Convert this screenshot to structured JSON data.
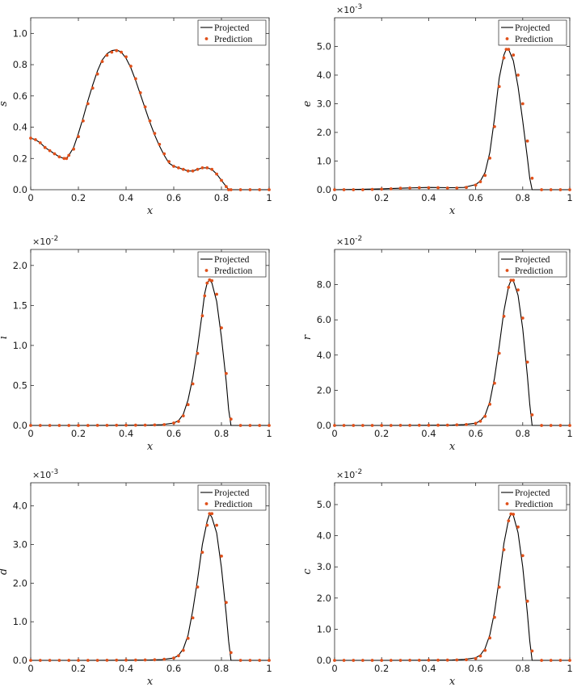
{
  "colors": {
    "projected": "#000000",
    "prediction": "#e0501a"
  },
  "legend": {
    "projected_label": "Projected",
    "prediction_label": "Prediction",
    "location": "top-right"
  },
  "chart_data": [
    {
      "type": "line",
      "title": "",
      "xlabel": "x",
      "ylabel": "s",
      "xlim": [
        0,
        1
      ],
      "ylim": [
        0,
        1.1
      ],
      "exponent": "",
      "xticks": [
        "0",
        "0.2",
        "0.4",
        "0.6",
        "0.8",
        "1"
      ],
      "yticks": [
        0,
        0.2,
        0.4,
        0.6,
        0.8,
        1.0
      ],
      "yticklabels": [
        "0.0",
        "0.2",
        "0.4",
        "0.6",
        "0.8",
        "1.0"
      ],
      "series": [
        {
          "name": "Projected",
          "style": "line",
          "x": [
            0,
            0.02,
            0.04,
            0.06,
            0.08,
            0.1,
            0.12,
            0.14,
            0.15,
            0.16,
            0.18,
            0.2,
            0.22,
            0.24,
            0.26,
            0.28,
            0.3,
            0.32,
            0.34,
            0.36,
            0.38,
            0.4,
            0.42,
            0.44,
            0.46,
            0.48,
            0.5,
            0.52,
            0.54,
            0.56,
            0.58,
            0.6,
            0.62,
            0.64,
            0.66,
            0.68,
            0.7,
            0.72,
            0.74,
            0.76,
            0.78,
            0.8,
            0.82,
            0.83,
            0.84,
            0.9,
            1.0
          ],
          "y": [
            0.33,
            0.32,
            0.3,
            0.27,
            0.25,
            0.23,
            0.21,
            0.2,
            0.2,
            0.22,
            0.27,
            0.36,
            0.46,
            0.57,
            0.67,
            0.76,
            0.83,
            0.87,
            0.89,
            0.895,
            0.88,
            0.84,
            0.78,
            0.7,
            0.61,
            0.52,
            0.43,
            0.35,
            0.28,
            0.22,
            0.17,
            0.15,
            0.14,
            0.13,
            0.12,
            0.12,
            0.13,
            0.14,
            0.14,
            0.13,
            0.1,
            0.06,
            0.02,
            0.0,
            0.0,
            0.0,
            0.0
          ]
        },
        {
          "name": "Prediction",
          "style": "markers",
          "x": [
            0,
            0.02,
            0.04,
            0.06,
            0.08,
            0.1,
            0.12,
            0.14,
            0.15,
            0.16,
            0.18,
            0.2,
            0.22,
            0.24,
            0.26,
            0.28,
            0.3,
            0.32,
            0.34,
            0.36,
            0.38,
            0.4,
            0.42,
            0.44,
            0.46,
            0.48,
            0.5,
            0.52,
            0.54,
            0.56,
            0.58,
            0.6,
            0.62,
            0.64,
            0.66,
            0.68,
            0.7,
            0.72,
            0.74,
            0.76,
            0.78,
            0.8,
            0.82,
            0.83,
            0.84,
            0.88,
            0.92,
            0.96,
            1.0
          ],
          "y": [
            0.33,
            0.32,
            0.3,
            0.27,
            0.25,
            0.23,
            0.21,
            0.2,
            0.2,
            0.22,
            0.26,
            0.34,
            0.44,
            0.55,
            0.65,
            0.74,
            0.82,
            0.86,
            0.88,
            0.89,
            0.88,
            0.85,
            0.79,
            0.71,
            0.62,
            0.53,
            0.44,
            0.36,
            0.29,
            0.23,
            0.18,
            0.15,
            0.14,
            0.13,
            0.12,
            0.12,
            0.13,
            0.14,
            0.14,
            0.13,
            0.1,
            0.06,
            0.02,
            0.0,
            0.0,
            0.0,
            0.0,
            0.0,
            0.0
          ]
        }
      ]
    },
    {
      "type": "line",
      "title": "",
      "xlabel": "x",
      "ylabel": "e",
      "xlim": [
        0,
        1
      ],
      "ylim": [
        0,
        0.006
      ],
      "exponent": "-3",
      "xticks": [
        "0",
        "0.2",
        "0.4",
        "0.6",
        "0.8",
        "1"
      ],
      "yticks": [
        0,
        0.001,
        0.002,
        0.003,
        0.004,
        0.005
      ],
      "yticklabels": [
        "0.0",
        "1.0",
        "2.0",
        "3.0",
        "4.0",
        "5.0"
      ],
      "series": [
        {
          "name": "Projected",
          "style": "line",
          "x": [
            0,
            0.1,
            0.2,
            0.3,
            0.4,
            0.5,
            0.55,
            0.6,
            0.62,
            0.64,
            0.66,
            0.68,
            0.7,
            0.72,
            0.73,
            0.74,
            0.76,
            0.78,
            0.8,
            0.82,
            0.83,
            0.84,
            0.9,
            1.0
          ],
          "y": [
            0,
            1e-05,
            3e-05,
            6e-05,
            8e-05,
            7e-05,
            8e-05,
            0.00018,
            0.0003,
            0.0006,
            0.0013,
            0.0025,
            0.0039,
            0.0047,
            0.0049,
            0.0049,
            0.0045,
            0.0036,
            0.0024,
            0.0011,
            0.0004,
            0.0,
            0.0,
            0.0
          ]
        },
        {
          "name": "Prediction",
          "style": "markers",
          "x": [
            0,
            0.04,
            0.08,
            0.12,
            0.16,
            0.2,
            0.24,
            0.28,
            0.32,
            0.36,
            0.4,
            0.44,
            0.48,
            0.52,
            0.56,
            0.6,
            0.62,
            0.64,
            0.66,
            0.68,
            0.7,
            0.72,
            0.73,
            0.74,
            0.76,
            0.78,
            0.8,
            0.82,
            0.84,
            0.88,
            0.92,
            0.96,
            1.0
          ],
          "y": [
            0,
            0.0,
            0.0,
            0.0,
            1e-05,
            2e-05,
            3e-05,
            5e-05,
            6e-05,
            7e-05,
            7e-05,
            7e-05,
            6e-05,
            6e-05,
            8e-05,
            0.00016,
            0.00028,
            0.0005,
            0.0011,
            0.0022,
            0.0036,
            0.0046,
            0.0049,
            0.0049,
            0.0047,
            0.004,
            0.003,
            0.0017,
            0.0004,
            0.0,
            0.0,
            0.0,
            0.0
          ]
        }
      ]
    },
    {
      "type": "line",
      "title": "",
      "xlabel": "x",
      "ylabel": "i",
      "xlim": [
        0,
        1
      ],
      "ylim": [
        0,
        0.022
      ],
      "exponent": "-2",
      "xticks": [
        "0",
        "0.2",
        "0.4",
        "0.6",
        "0.8",
        "1"
      ],
      "yticks": [
        0,
        0.005,
        0.01,
        0.015,
        0.02
      ],
      "yticklabels": [
        "0.0",
        "0.5",
        "1.0",
        "1.5",
        "2.0"
      ],
      "series": [
        {
          "name": "Projected",
          "style": "line",
          "x": [
            0,
            0.2,
            0.4,
            0.5,
            0.55,
            0.6,
            0.62,
            0.64,
            0.66,
            0.68,
            0.7,
            0.72,
            0.73,
            0.74,
            0.75,
            0.76,
            0.78,
            0.8,
            0.82,
            0.83,
            0.84,
            0.9,
            1.0
          ],
          "y": [
            0,
            0.0,
            2e-05,
            5e-05,
            0.0001,
            0.0003,
            0.0006,
            0.0014,
            0.0032,
            0.006,
            0.0098,
            0.0142,
            0.0165,
            0.0178,
            0.0182,
            0.0178,
            0.0155,
            0.011,
            0.0055,
            0.002,
            0.0,
            0.0,
            0.0
          ]
        },
        {
          "name": "Prediction",
          "style": "markers",
          "x": [
            0,
            0.04,
            0.08,
            0.12,
            0.16,
            0.2,
            0.24,
            0.28,
            0.32,
            0.36,
            0.4,
            0.44,
            0.48,
            0.52,
            0.56,
            0.6,
            0.62,
            0.64,
            0.66,
            0.68,
            0.7,
            0.72,
            0.73,
            0.74,
            0.75,
            0.76,
            0.78,
            0.8,
            0.82,
            0.84,
            0.88,
            0.92,
            0.96,
            1.0
          ],
          "y": [
            0,
            0.0,
            0.0,
            0.0,
            0.0,
            0.0,
            0.0,
            1e-05,
            1e-05,
            2e-05,
            2e-05,
            3e-05,
            4e-05,
            6e-05,
            0.0001,
            0.0003,
            0.0005,
            0.0012,
            0.0026,
            0.0052,
            0.009,
            0.0137,
            0.0162,
            0.0178,
            0.0182,
            0.0181,
            0.0164,
            0.0122,
            0.0065,
            0.0008,
            0.0,
            0.0,
            0.0,
            0.0
          ]
        }
      ]
    },
    {
      "type": "line",
      "title": "",
      "xlabel": "x",
      "ylabel": "r",
      "xlim": [
        0,
        1
      ],
      "ylim": [
        0,
        0.1
      ],
      "exponent": "-2",
      "xticks": [
        "0",
        "0.2",
        "0.4",
        "0.6",
        "0.8",
        "1"
      ],
      "yticks": [
        0,
        0.02,
        0.04,
        0.06,
        0.08
      ],
      "yticklabels": [
        "0.0",
        "2.0",
        "4.0",
        "6.0",
        "8.0"
      ],
      "series": [
        {
          "name": "Projected",
          "style": "line",
          "x": [
            0,
            0.2,
            0.4,
            0.5,
            0.55,
            0.6,
            0.62,
            0.64,
            0.66,
            0.68,
            0.7,
            0.72,
            0.74,
            0.75,
            0.76,
            0.78,
            0.8,
            0.82,
            0.83,
            0.84,
            0.9,
            1.0
          ],
          "y": [
            0,
            0.0,
            0.0001,
            0.0002,
            0.0005,
            0.0013,
            0.0026,
            0.0058,
            0.0135,
            0.027,
            0.045,
            0.065,
            0.079,
            0.0825,
            0.0822,
            0.074,
            0.055,
            0.028,
            0.012,
            0.0,
            0.0,
            0.0
          ]
        },
        {
          "name": "Prediction",
          "style": "markers",
          "x": [
            0,
            0.04,
            0.08,
            0.12,
            0.16,
            0.2,
            0.24,
            0.28,
            0.32,
            0.36,
            0.4,
            0.44,
            0.48,
            0.52,
            0.56,
            0.6,
            0.62,
            0.64,
            0.66,
            0.68,
            0.7,
            0.72,
            0.74,
            0.75,
            0.76,
            0.78,
            0.8,
            0.82,
            0.84,
            0.88,
            0.92,
            0.96,
            1.0
          ],
          "y": [
            0,
            0.0,
            0.0,
            0.0,
            0.0,
            0.0,
            0.0,
            3e-05,
            5e-05,
            8e-05,
            0.0001,
            0.00015,
            0.0002,
            0.0003,
            0.0005,
            0.0012,
            0.0024,
            0.0052,
            0.012,
            0.024,
            0.041,
            0.062,
            0.0785,
            0.0825,
            0.0825,
            0.077,
            0.061,
            0.036,
            0.006,
            0.0,
            0.0,
            0.0,
            0.0
          ]
        }
      ]
    },
    {
      "type": "line",
      "title": "",
      "xlabel": "x",
      "ylabel": "d",
      "xlim": [
        0,
        1
      ],
      "ylim": [
        0,
        0.0046
      ],
      "exponent": "-3",
      "xticks": [
        "0",
        "0.2",
        "0.4",
        "0.6",
        "0.8",
        "1"
      ],
      "yticks": [
        0,
        0.001,
        0.002,
        0.003,
        0.004
      ],
      "yticklabels": [
        "0.0",
        "1.0",
        "2.0",
        "3.0",
        "4.0"
      ],
      "series": [
        {
          "name": "Projected",
          "style": "line",
          "x": [
            0,
            0.2,
            0.4,
            0.5,
            0.55,
            0.6,
            0.62,
            0.64,
            0.66,
            0.68,
            0.7,
            0.72,
            0.74,
            0.75,
            0.76,
            0.78,
            0.8,
            0.82,
            0.83,
            0.84,
            0.9,
            1.0
          ],
          "y": [
            0,
            0.0,
            5e-06,
            1e-05,
            2e-05,
            6e-05,
            0.00013,
            0.0003,
            0.00065,
            0.0013,
            0.0021,
            0.003,
            0.0036,
            0.0038,
            0.0037,
            0.0033,
            0.0024,
            0.0012,
            0.0005,
            0.0,
            0.0,
            0.0
          ]
        },
        {
          "name": "Prediction",
          "style": "markers",
          "x": [
            0,
            0.04,
            0.08,
            0.12,
            0.16,
            0.2,
            0.24,
            0.28,
            0.32,
            0.36,
            0.4,
            0.44,
            0.48,
            0.52,
            0.56,
            0.6,
            0.62,
            0.64,
            0.66,
            0.68,
            0.7,
            0.72,
            0.74,
            0.75,
            0.76,
            0.78,
            0.8,
            0.82,
            0.84,
            0.88,
            0.92,
            0.96,
            1.0
          ],
          "y": [
            0,
            0.0,
            0.0,
            0.0,
            0.0,
            0.0,
            0.0,
            0.0,
            2e-06,
            4e-06,
            6e-06,
            8e-06,
            1e-05,
            1.5e-05,
            3e-05,
            6e-05,
            0.00012,
            0.00026,
            0.00057,
            0.0011,
            0.0019,
            0.0028,
            0.0035,
            0.0038,
            0.0038,
            0.0035,
            0.0027,
            0.0015,
            0.0002,
            0.0,
            0.0,
            0.0,
            0.0
          ]
        }
      ]
    },
    {
      "type": "line",
      "title": "",
      "xlabel": "x",
      "ylabel": "c",
      "xlim": [
        0,
        1
      ],
      "ylim": [
        0,
        0.057
      ],
      "exponent": "-2",
      "xticks": [
        "0",
        "0.2",
        "0.4",
        "0.6",
        "0.8",
        "1"
      ],
      "yticks": [
        0,
        0.01,
        0.02,
        0.03,
        0.04,
        0.05
      ],
      "yticklabels": [
        "0.0",
        "1.0",
        "2.0",
        "3.0",
        "4.0",
        "5.0"
      ],
      "series": [
        {
          "name": "Projected",
          "style": "line",
          "x": [
            0,
            0.2,
            0.4,
            0.5,
            0.55,
            0.6,
            0.62,
            0.64,
            0.66,
            0.68,
            0.7,
            0.72,
            0.74,
            0.75,
            0.76,
            0.78,
            0.8,
            0.82,
            0.83,
            0.84,
            0.9,
            1.0
          ],
          "y": [
            0,
            0.0,
            5e-05,
            0.0001,
            0.0003,
            0.0008,
            0.0017,
            0.0038,
            0.0082,
            0.0155,
            0.026,
            0.0375,
            0.0452,
            0.047,
            0.0465,
            0.041,
            0.03,
            0.015,
            0.0062,
            0.0,
            0.0,
            0.0
          ]
        },
        {
          "name": "Prediction",
          "style": "markers",
          "x": [
            0,
            0.04,
            0.08,
            0.12,
            0.16,
            0.2,
            0.24,
            0.28,
            0.32,
            0.36,
            0.4,
            0.44,
            0.48,
            0.52,
            0.56,
            0.6,
            0.62,
            0.64,
            0.66,
            0.68,
            0.7,
            0.72,
            0.74,
            0.75,
            0.76,
            0.78,
            0.8,
            0.82,
            0.84,
            0.88,
            0.92,
            0.96,
            1.0
          ],
          "y": [
            0,
            0.0,
            0.0,
            0.0,
            0.0,
            0.0,
            0.0,
            1e-05,
            2e-05,
            3e-05,
            4e-05,
            6e-05,
            8e-05,
            0.00012,
            0.0002,
            0.0006,
            0.0014,
            0.0032,
            0.0072,
            0.0138,
            0.0235,
            0.0355,
            0.0448,
            0.047,
            0.0469,
            0.0428,
            0.0336,
            0.019,
            0.003,
            0.0,
            0.0,
            0.0,
            0.0
          ]
        }
      ]
    }
  ]
}
